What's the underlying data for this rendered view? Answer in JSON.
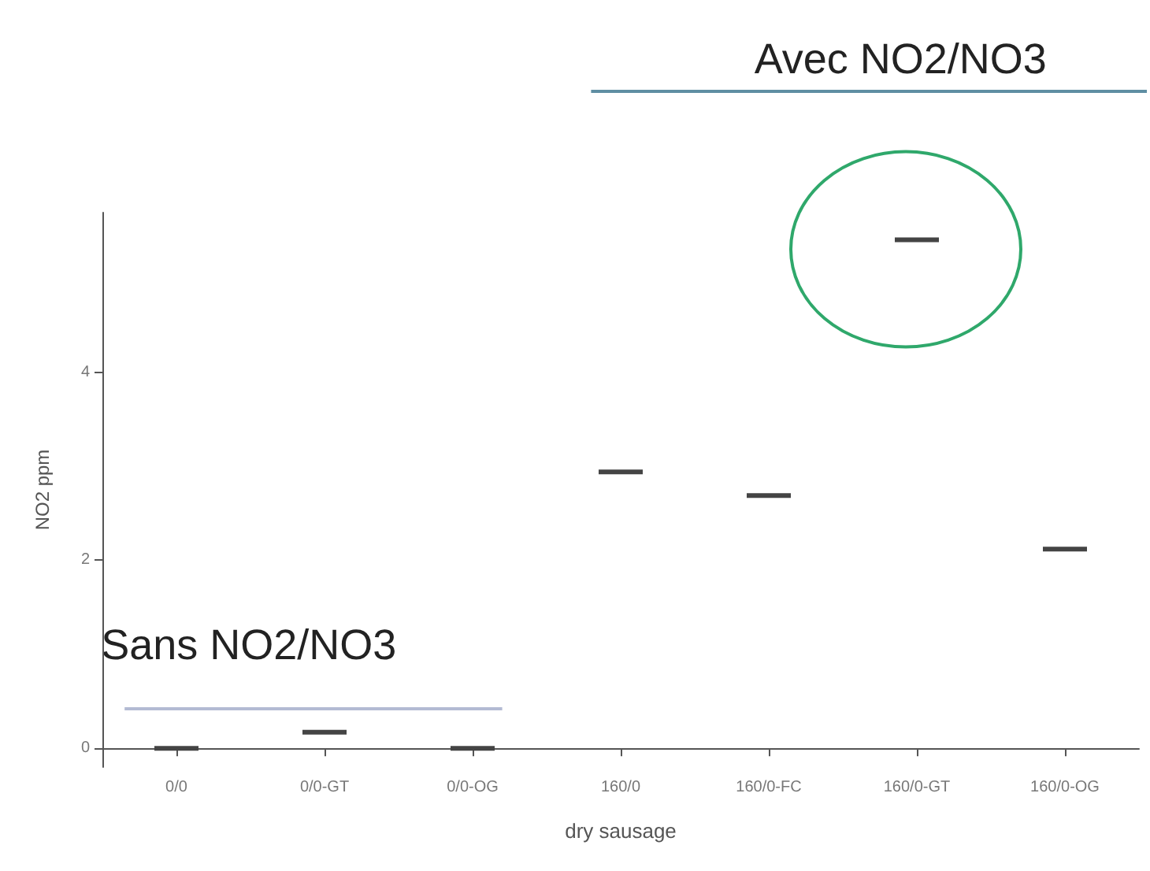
{
  "chart_data": {
    "type": "box",
    "xlabel": "dry sausage",
    "ylabel": "NO2 ppm",
    "categories": [
      "0/0",
      "0/0-GT",
      "0/0-OG",
      "160/0",
      "160/0-FC",
      "160/0-GT",
      "160/0-OG"
    ],
    "boxes": [
      {
        "low": 0,
        "q1": 0,
        "median": 0,
        "q3": 0,
        "high": 0
      },
      {
        "low": 0.17,
        "q1": 0.17,
        "median": 0.17,
        "q3": 0.17,
        "high": 0.17
      },
      {
        "low": 0,
        "q1": 0,
        "median": 0,
        "q3": 0,
        "high": 0
      },
      {
        "low": 2.94,
        "q1": 2.94,
        "median": 2.94,
        "q3": 2.94,
        "high": 2.94
      },
      {
        "low": 2.69,
        "q1": 2.69,
        "median": 2.69,
        "q3": 2.69,
        "high": 2.69
      },
      {
        "low": 5.41,
        "q1": 5.41,
        "median": 5.41,
        "q3": 5.41,
        "high": 5.41
      },
      {
        "low": 2.12,
        "q1": 2.12,
        "median": 2.12,
        "q3": 2.12,
        "high": 2.12
      }
    ],
    "color": "#444444",
    "ylim": [
      -0.2,
      5.7
    ],
    "yticks": [
      0,
      2,
      4
    ],
    "grid": false,
    "annotations": [
      "Sans NO2/NO3",
      "Avec NO2/NO3"
    ]
  }
}
